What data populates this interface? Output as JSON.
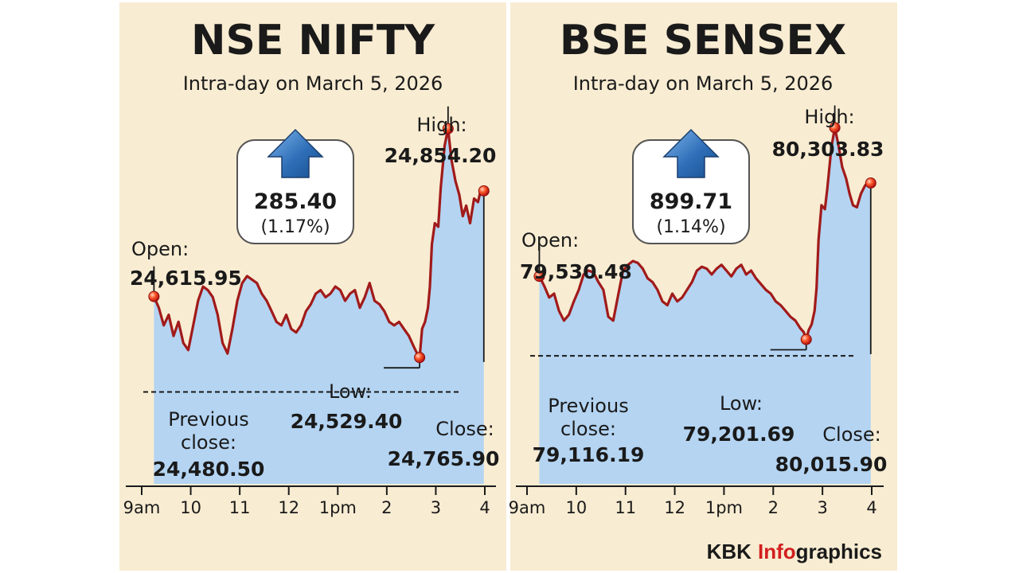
{
  "brand": {
    "kbk": "KBK",
    "info": "Info",
    "graphics": "graphics"
  },
  "colors": {
    "panel_bg": "#f8ecd2",
    "area_fill": "#b4d4f2",
    "line": "#a11a1a",
    "arrow": "#2f6fb8",
    "info_red": "#d21f1f"
  },
  "chart_data": [
    {
      "type": "area",
      "title": "NSE NIFTY",
      "subtitle": "Intra-day on March 5, 2026",
      "x_ticks": [
        "9am",
        "10",
        "11",
        "12",
        "1pm",
        "2",
        "3",
        "4"
      ],
      "ylim": [
        24350,
        24890
      ],
      "change": {
        "value": "285.40",
        "percent": "(1.17%)"
      },
      "open": {
        "label": "Open:",
        "text": "24,615.95",
        "value": 24615.95,
        "x": 9.25
      },
      "high": {
        "label": "High:",
        "text": "24,854.20",
        "value": 24854.2,
        "x": 15.25
      },
      "low": {
        "label": "Low:",
        "text": "24,529.40",
        "value": 24529.4,
        "x": 14.67
      },
      "close": {
        "label": "Close:",
        "text": "24,765.90",
        "value": 24765.9,
        "x": 15.98
      },
      "previous_close": {
        "label_line1": "Previous",
        "label_line2": "close:",
        "text": "24,480.50",
        "value": 24480.5
      },
      "series": [
        {
          "x": 9.25,
          "y": 24615.95
        },
        {
          "x": 9.35,
          "y": 24600
        },
        {
          "x": 9.45,
          "y": 24575
        },
        {
          "x": 9.55,
          "y": 24590
        },
        {
          "x": 9.65,
          "y": 24560
        },
        {
          "x": 9.75,
          "y": 24580
        },
        {
          "x": 9.85,
          "y": 24550
        },
        {
          "x": 9.95,
          "y": 24540
        },
        {
          "x": 10.05,
          "y": 24575
        },
        {
          "x": 10.15,
          "y": 24610
        },
        {
          "x": 10.25,
          "y": 24630
        },
        {
          "x": 10.35,
          "y": 24625
        },
        {
          "x": 10.45,
          "y": 24615
        },
        {
          "x": 10.55,
          "y": 24590
        },
        {
          "x": 10.65,
          "y": 24550
        },
        {
          "x": 10.75,
          "y": 24535
        },
        {
          "x": 10.85,
          "y": 24570
        },
        {
          "x": 10.95,
          "y": 24610
        },
        {
          "x": 11.05,
          "y": 24635
        },
        {
          "x": 11.15,
          "y": 24645
        },
        {
          "x": 11.25,
          "y": 24640
        },
        {
          "x": 11.35,
          "y": 24635
        },
        {
          "x": 11.45,
          "y": 24620
        },
        {
          "x": 11.55,
          "y": 24610
        },
        {
          "x": 11.65,
          "y": 24595
        },
        {
          "x": 11.75,
          "y": 24580
        },
        {
          "x": 11.85,
          "y": 24575
        },
        {
          "x": 11.95,
          "y": 24590
        },
        {
          "x": 12.05,
          "y": 24570
        },
        {
          "x": 12.15,
          "y": 24565
        },
        {
          "x": 12.25,
          "y": 24575
        },
        {
          "x": 12.35,
          "y": 24595
        },
        {
          "x": 12.45,
          "y": 24605
        },
        {
          "x": 12.55,
          "y": 24620
        },
        {
          "x": 12.65,
          "y": 24625
        },
        {
          "x": 12.75,
          "y": 24615
        },
        {
          "x": 12.85,
          "y": 24620
        },
        {
          "x": 12.95,
          "y": 24630
        },
        {
          "x": 13.05,
          "y": 24625
        },
        {
          "x": 13.15,
          "y": 24610
        },
        {
          "x": 13.25,
          "y": 24620
        },
        {
          "x": 13.35,
          "y": 24625
        },
        {
          "x": 13.45,
          "y": 24600
        },
        {
          "x": 13.55,
          "y": 24615
        },
        {
          "x": 13.65,
          "y": 24635
        },
        {
          "x": 13.75,
          "y": 24610
        },
        {
          "x": 13.85,
          "y": 24605
        },
        {
          "x": 13.95,
          "y": 24595
        },
        {
          "x": 14.05,
          "y": 24580
        },
        {
          "x": 14.15,
          "y": 24575
        },
        {
          "x": 14.25,
          "y": 24580
        },
        {
          "x": 14.35,
          "y": 24570
        },
        {
          "x": 14.45,
          "y": 24560
        },
        {
          "x": 14.55,
          "y": 24545
        },
        {
          "x": 14.62,
          "y": 24535
        },
        {
          "x": 14.67,
          "y": 24529.4
        },
        {
          "x": 14.72,
          "y": 24570
        },
        {
          "x": 14.78,
          "y": 24580
        },
        {
          "x": 14.84,
          "y": 24600
        },
        {
          "x": 14.88,
          "y": 24630
        },
        {
          "x": 14.92,
          "y": 24690
        },
        {
          "x": 14.98,
          "y": 24720
        },
        {
          "x": 15.05,
          "y": 24715
        },
        {
          "x": 15.1,
          "y": 24770
        },
        {
          "x": 15.18,
          "y": 24830
        },
        {
          "x": 15.25,
          "y": 24854.2
        },
        {
          "x": 15.32,
          "y": 24810
        },
        {
          "x": 15.4,
          "y": 24780
        },
        {
          "x": 15.48,
          "y": 24760
        },
        {
          "x": 15.55,
          "y": 24730
        },
        {
          "x": 15.62,
          "y": 24745
        },
        {
          "x": 15.7,
          "y": 24720
        },
        {
          "x": 15.78,
          "y": 24755
        },
        {
          "x": 15.86,
          "y": 24750
        },
        {
          "x": 15.92,
          "y": 24768
        },
        {
          "x": 15.98,
          "y": 24765.9
        }
      ]
    },
    {
      "type": "area",
      "title": "BSE SENSEX",
      "subtitle": "Intra-day on March 5, 2026",
      "x_ticks": [
        "9am",
        "10",
        "11",
        "12",
        "1pm",
        "2",
        "3",
        "4"
      ],
      "ylim": [
        78450,
        80430
      ],
      "change": {
        "value": "899.71",
        "percent": "(1.14%)"
      },
      "open": {
        "label": "Open:",
        "text": "79,530.48",
        "value": 79530.48,
        "x": 9.25
      },
      "high": {
        "label": "High:",
        "text": "80,303.83",
        "value": 80303.83,
        "x": 15.25
      },
      "low": {
        "label": "Low:",
        "text": "79,201.69",
        "value": 79201.69,
        "x": 14.67
      },
      "close": {
        "label": "Close:",
        "text": "80,015.90",
        "value": 80015.9,
        "x": 15.98
      },
      "previous_close": {
        "label_line1": "Previous",
        "label_line2": "close:",
        "text": "79,116.19",
        "value": 79116.19
      },
      "series": [
        {
          "x": 9.25,
          "y": 79530.48
        },
        {
          "x": 9.35,
          "y": 79480
        },
        {
          "x": 9.45,
          "y": 79420
        },
        {
          "x": 9.55,
          "y": 79440
        },
        {
          "x": 9.65,
          "y": 79350
        },
        {
          "x": 9.75,
          "y": 79300
        },
        {
          "x": 9.85,
          "y": 79330
        },
        {
          "x": 9.95,
          "y": 79400
        },
        {
          "x": 10.05,
          "y": 79460
        },
        {
          "x": 10.15,
          "y": 79540
        },
        {
          "x": 10.25,
          "y": 79560
        },
        {
          "x": 10.35,
          "y": 79550
        },
        {
          "x": 10.45,
          "y": 79500
        },
        {
          "x": 10.55,
          "y": 79460
        },
        {
          "x": 10.65,
          "y": 79320
        },
        {
          "x": 10.75,
          "y": 79300
        },
        {
          "x": 10.85,
          "y": 79430
        },
        {
          "x": 10.95,
          "y": 79560
        },
        {
          "x": 11.05,
          "y": 79590
        },
        {
          "x": 11.15,
          "y": 79610
        },
        {
          "x": 11.25,
          "y": 79600
        },
        {
          "x": 11.35,
          "y": 79570
        },
        {
          "x": 11.45,
          "y": 79520
        },
        {
          "x": 11.55,
          "y": 79500
        },
        {
          "x": 11.65,
          "y": 79460
        },
        {
          "x": 11.75,
          "y": 79400
        },
        {
          "x": 11.85,
          "y": 79380
        },
        {
          "x": 11.95,
          "y": 79440
        },
        {
          "x": 12.05,
          "y": 79400
        },
        {
          "x": 12.15,
          "y": 79420
        },
        {
          "x": 12.25,
          "y": 79460
        },
        {
          "x": 12.35,
          "y": 79500
        },
        {
          "x": 12.45,
          "y": 79560
        },
        {
          "x": 12.55,
          "y": 79580
        },
        {
          "x": 12.65,
          "y": 79570
        },
        {
          "x": 12.75,
          "y": 79540
        },
        {
          "x": 12.85,
          "y": 79570
        },
        {
          "x": 12.95,
          "y": 79590
        },
        {
          "x": 13.05,
          "y": 79560
        },
        {
          "x": 13.15,
          "y": 79530
        },
        {
          "x": 13.25,
          "y": 79570
        },
        {
          "x": 13.35,
          "y": 79590
        },
        {
          "x": 13.45,
          "y": 79540
        },
        {
          "x": 13.55,
          "y": 79560
        },
        {
          "x": 13.65,
          "y": 79520
        },
        {
          "x": 13.75,
          "y": 79490
        },
        {
          "x": 13.85,
          "y": 79460
        },
        {
          "x": 13.95,
          "y": 79440
        },
        {
          "x": 14.05,
          "y": 79400
        },
        {
          "x": 14.15,
          "y": 79380
        },
        {
          "x": 14.25,
          "y": 79350
        },
        {
          "x": 14.35,
          "y": 79320
        },
        {
          "x": 14.45,
          "y": 79300
        },
        {
          "x": 14.55,
          "y": 79260
        },
        {
          "x": 14.62,
          "y": 79240
        },
        {
          "x": 14.67,
          "y": 79201.69
        },
        {
          "x": 14.72,
          "y": 79250
        },
        {
          "x": 14.78,
          "y": 79280
        },
        {
          "x": 14.84,
          "y": 79350
        },
        {
          "x": 14.88,
          "y": 79470
        },
        {
          "x": 14.92,
          "y": 79720
        },
        {
          "x": 14.98,
          "y": 79900
        },
        {
          "x": 15.05,
          "y": 79880
        },
        {
          "x": 15.1,
          "y": 79990
        },
        {
          "x": 15.18,
          "y": 80200
        },
        {
          "x": 15.25,
          "y": 80303.83
        },
        {
          "x": 15.32,
          "y": 80220
        },
        {
          "x": 15.4,
          "y": 80100
        },
        {
          "x": 15.48,
          "y": 80040
        },
        {
          "x": 15.55,
          "y": 79960
        },
        {
          "x": 15.62,
          "y": 79900
        },
        {
          "x": 15.7,
          "y": 79890
        },
        {
          "x": 15.78,
          "y": 79960
        },
        {
          "x": 15.86,
          "y": 80000
        },
        {
          "x": 15.92,
          "y": 80020
        },
        {
          "x": 15.98,
          "y": 80015.9
        }
      ]
    }
  ]
}
